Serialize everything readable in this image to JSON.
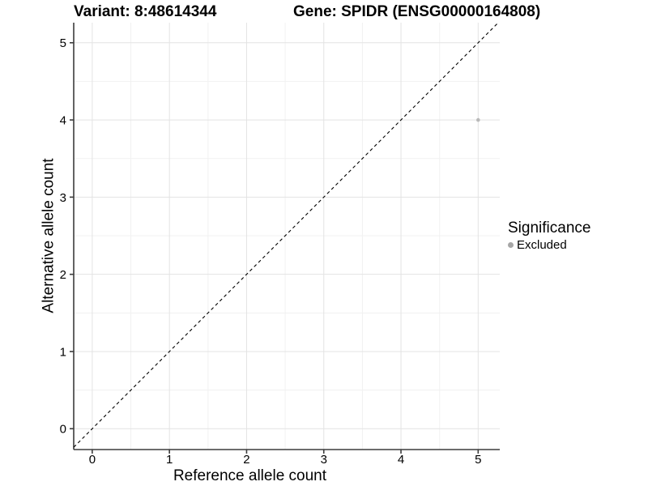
{
  "header": {
    "title_variant": "Variant: 8:48614344",
    "title_gene": "Gene: SPIDR (ENSG00000164808)"
  },
  "chart_data": {
    "type": "scatter",
    "titles": [
      "Variant: 8:48614344",
      "Gene: SPIDR (ENSG00000164808)"
    ],
    "xlabel": "Reference allele count",
    "ylabel": "Alternative allele count",
    "xlim": [
      -0.24,
      5.28
    ],
    "ylim": [
      -0.27,
      5.26
    ],
    "xticks": [
      0,
      1,
      2,
      3,
      4,
      5
    ],
    "yticks": [
      0,
      1,
      2,
      3,
      4,
      5
    ],
    "minor_gridlines_x": [
      0.5,
      1.5,
      2.5,
      3.5,
      4.5
    ],
    "minor_gridlines_y": [
      0.5,
      1.5,
      2.5,
      3.5,
      4.5
    ],
    "grid": true,
    "points": [
      {
        "x": 5,
        "y": 4,
        "significance": "Excluded"
      }
    ],
    "identity_line": {
      "slope": 1,
      "intercept": 0,
      "style": "dashed",
      "color": "#000000"
    },
    "legend": {
      "title": "Significance",
      "position": "right",
      "items": [
        {
          "label": "Excluded",
          "color": "#a6a6a6",
          "marker": "circle"
        }
      ]
    },
    "colors": {
      "background": "#ffffff",
      "major_grid": "#e3e3e3",
      "minor_grid": "#f1f1f1",
      "axis": "#3c3c3c",
      "point": "#b9b9b9"
    }
  }
}
